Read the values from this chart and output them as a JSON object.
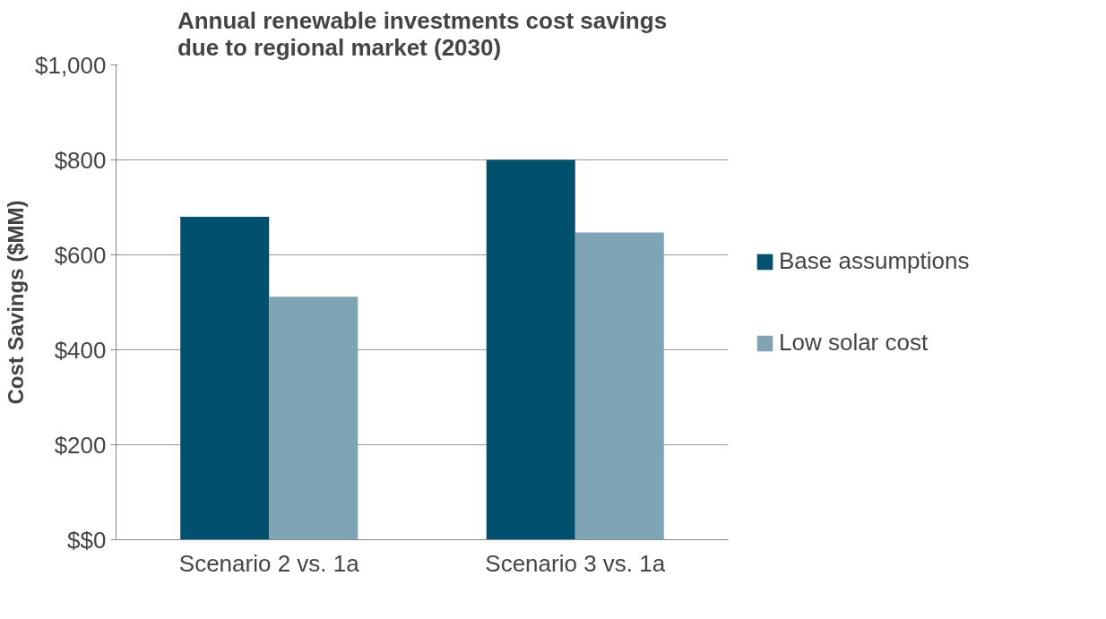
{
  "chart_data": {
    "type": "bar",
    "title": "Annual renewable investments cost savings\ndue to regional market (2030)",
    "ylabel": "Cost Savings ($MM)",
    "categories": [
      "Scenario 2 vs. 1a",
      "Scenario 3 vs. 1a"
    ],
    "series": [
      {
        "name": "Base assumptions",
        "color": "#00506e",
        "values": [
          680,
          800
        ]
      },
      {
        "name": "Low solar cost",
        "color": "#7fa5b5",
        "values": [
          512,
          647
        ]
      }
    ],
    "ylim": [
      0,
      1000
    ],
    "yticks": [
      {
        "value": 0,
        "label": "$$0"
      },
      {
        "value": 200,
        "label": "$200"
      },
      {
        "value": 400,
        "label": "$400"
      },
      {
        "value": 600,
        "label": "$600"
      },
      {
        "value": 800,
        "label": "$800"
      },
      {
        "value": 1000,
        "label": "$1,000"
      }
    ],
    "grid": "y",
    "legend": "right"
  }
}
